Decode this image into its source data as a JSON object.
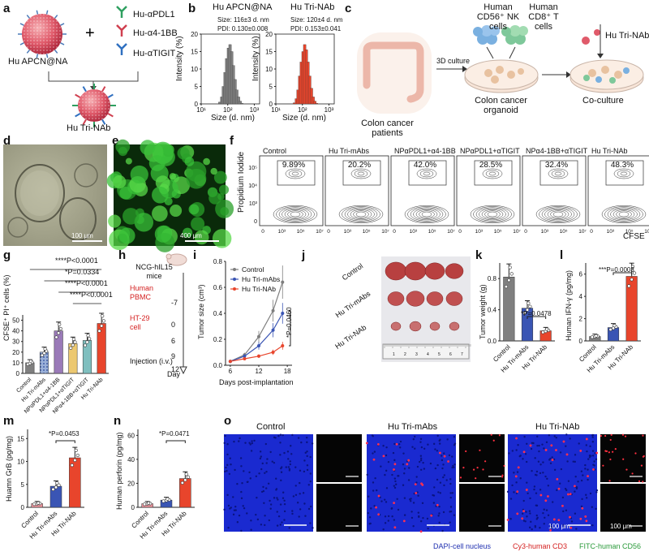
{
  "panel_letters": [
    "a",
    "b",
    "c",
    "d",
    "e",
    "f",
    "g",
    "h",
    "i",
    "j",
    "k",
    "l",
    "m",
    "n",
    "o"
  ],
  "panel_a": {
    "np_label": "Hu APCN@NA",
    "antibodies": [
      "Hu-αPDL1",
      "Hu-α4-1BB",
      "Hu-αTIGIT"
    ],
    "product_label": "Hu Tri-NAb"
  },
  "panel_b": {
    "left_title": "Hu APCN@NA",
    "left_size": "Size: 116±3 d. nm",
    "left_pdi": "PDI: 0.130±0.008",
    "right_title": "Hu Tri-NAb",
    "right_size": "Size: 120±4 d. nm",
    "right_pdi": "PDI: 0.153±0.041",
    "ylabel": "Intensity (%)",
    "xlabel": "Size (d. nm)",
    "yticks": [
      "0",
      "5",
      "10",
      "15",
      "20"
    ],
    "xticks": [
      "10¹",
      "10²",
      "10³"
    ]
  },
  "panel_c": {
    "nk_label": "Human CD56⁺ NK cells",
    "t_label": "Human CD8⁺ T cells",
    "culture_label": "3D culture",
    "patients_label": "Colon cancer patients",
    "organoid_label": "Colon cancer organoid",
    "treatment_label": "Hu Tri-NAb",
    "coculture_label": "Co-culture"
  },
  "panel_d": {
    "scale": "100 μm"
  },
  "panel_e": {
    "scale": "400 μm"
  },
  "panel_f": {
    "groups": [
      "Control",
      "Hu Tri-mAbs",
      "NPαPDL1+α4-1BB",
      "NPαPDL1+αTIGIT",
      "NPα4-1BB+αTIGIT",
      "Hu Tri-NAb"
    ],
    "percents": [
      "9.89%",
      "20.2%",
      "42.0%",
      "28.5%",
      "32.4%",
      "48.3%"
    ],
    "ylabel": "Propidium Iodide",
    "xlabel": "CFSE",
    "yticks": [
      "0",
      "10³",
      "10⁴",
      "10⁵"
    ],
    "xticks": [
      "0",
      "10³",
      "10⁵",
      "10⁷"
    ]
  },
  "panel_g": {
    "ylabel": "CFSE⁺ PI⁺ cells (%)",
    "yticks": [
      "0",
      "10",
      "20",
      "30",
      "40",
      "50"
    ],
    "stats": [
      "****P<0.0001",
      "*P=0.0334",
      "****P<0.0001",
      "****P<0.0001"
    ]
  },
  "panel_h": {
    "mouse_label": "NCG-hIL15 mice",
    "step1": "Human PBMC",
    "step2": "HT-29 cell",
    "step3": "Injection (i.v.)",
    "day_axis_label": "Day",
    "days": [
      "-7",
      "0",
      "6",
      "9",
      "12"
    ]
  },
  "panel_i": {
    "ylabel": "Tumor size (cm³)",
    "xlabel": "Days post-implantation",
    "stat": "*P=0.0460",
    "yticks": [
      "0.0",
      "0.2",
      "0.4",
      "0.6",
      "0.8"
    ],
    "xticks": [
      "6",
      "12",
      "18"
    ]
  },
  "panel_j": {
    "rows": [
      "Control",
      "Hu Tri-mAbs",
      "Hu Tri-NAb"
    ],
    "ruler_numbers": [
      "1",
      "2",
      "3",
      "4",
      "5",
      "6",
      "7"
    ]
  },
  "panel_k": {
    "ylabel": "Tumor weight (g)",
    "yticks": [
      "0.0",
      "0.4",
      "0.8"
    ],
    "stat": "*P=0.0478"
  },
  "panel_l": {
    "ylabel": "Human IFN-γ (pg/mg)",
    "yticks": [
      "0",
      "2",
      "4",
      "6"
    ],
    "stat": "***P=0.0003"
  },
  "panel_m": {
    "ylabel": "Huamn GrB (pg/mg)",
    "yticks": [
      "0",
      "5",
      "10",
      "15"
    ],
    "stat": "*P=0.0453"
  },
  "panel_n": {
    "ylabel": "Human perforin (pg/mg)",
    "yticks": [
      "0",
      "20",
      "40",
      "60"
    ],
    "stat": "*P=0.0471"
  },
  "panel_o": {
    "groups": [
      "Control",
      "Hu Tri-mAbs",
      "Hu Tri-NAb"
    ],
    "scale1": "100 μm",
    "scale2": "100 μm",
    "legend_dapi": "DAPI-cell nucleus",
    "legend_cy3": "Cy3-human CD3",
    "legend_fitc": "FITC-human CD56"
  },
  "colors": {
    "gray": "#7f7f7f",
    "blue": "#3a55b4",
    "red": "#e8452c",
    "pink": "#e8929a",
    "purple": "#9a7ab8",
    "yellow": "#ecc870",
    "teal": "#7fbfbf"
  },
  "chart_data": [
    {
      "id": "b-left",
      "type": "bar",
      "title": "Hu APCN@NA",
      "xlabel": "Size (d. nm)",
      "ylabel": "Intensity (%)",
      "x": [
        50,
        59,
        68,
        79,
        91,
        106,
        122,
        142,
        164,
        190,
        220,
        255,
        295,
        342
      ],
      "values": [
        0.5,
        2,
        5,
        9,
        13,
        16,
        17,
        15,
        11,
        7,
        4,
        2,
        0.8,
        0.2
      ],
      "ylim": [
        0,
        20
      ]
    },
    {
      "id": "b-right",
      "type": "bar",
      "title": "Hu Tri-NAb",
      "xlabel": "Size (d. nm)",
      "ylabel": "Intensity (%)",
      "x": [
        50,
        59,
        68,
        79,
        91,
        106,
        122,
        142,
        164,
        190,
        220,
        255,
        295,
        342
      ],
      "values": [
        0.3,
        1.5,
        4,
        8,
        12,
        15,
        17,
        15.5,
        12,
        8,
        4.5,
        2,
        0.8,
        0.2
      ],
      "ylim": [
        0,
        20
      ]
    },
    {
      "id": "g",
      "type": "bar",
      "ylabel": "CFSE⁺ PI⁺ cells (%)",
      "categories": [
        "Control",
        "Hu Tri-mAbs",
        "NPαPDL1+α4-1BB",
        "NPαPDL1+αTIGIT",
        "NPα4-1BB+αTIGIT",
        "Hu Tri-NAb"
      ],
      "values": [
        10,
        20,
        40,
        28,
        31,
        47
      ],
      "ylim": [
        0,
        55
      ]
    },
    {
      "id": "i",
      "type": "line",
      "xlabel": "Days post-implantation",
      "ylabel": "Tumor size (cm³)",
      "x": [
        6,
        9,
        12,
        15,
        17
      ],
      "series": [
        {
          "name": "Control",
          "values": [
            0.03,
            0.08,
            0.22,
            0.42,
            0.64
          ]
        },
        {
          "name": "Hu Tri-mAbs",
          "values": [
            0.03,
            0.07,
            0.15,
            0.27,
            0.4
          ]
        },
        {
          "name": "Hu Tri-NAb",
          "values": [
            0.03,
            0.05,
            0.07,
            0.1,
            0.15
          ]
        }
      ],
      "xlim": [
        5,
        19
      ],
      "ylim": [
        0,
        0.8
      ]
    },
    {
      "id": "k",
      "type": "bar",
      "ylabel": "Tumor weight (g)",
      "categories": [
        "Control",
        "Hu Tri-mAbs",
        "Hu Tri-NAb"
      ],
      "values": [
        0.82,
        0.42,
        0.13
      ],
      "ylim": [
        0,
        1.0
      ]
    },
    {
      "id": "l",
      "type": "bar",
      "ylabel": "Human IFN-γ (pg/mg)",
      "categories": [
        "Control",
        "Hu Tri-mAbs",
        "Hu Tri-NAb"
      ],
      "values": [
        0.4,
        1.2,
        5.8
      ],
      "ylim": [
        0,
        7
      ]
    },
    {
      "id": "m",
      "type": "bar",
      "ylabel": "Huamn GrB (pg/mg)",
      "categories": [
        "Control",
        "Hu Tri-mAbs",
        "Hu Tri-NAb"
      ],
      "values": [
        0.8,
        4.6,
        10.8
      ],
      "ylim": [
        0,
        17
      ]
    },
    {
      "id": "n",
      "type": "bar",
      "ylabel": "Human perforin (pg/mg)",
      "categories": [
        "Control",
        "Hu Tri-mAbs",
        "Hu Tri-NAb"
      ],
      "values": [
        3,
        6,
        24
      ],
      "ylim": [
        0,
        65
      ]
    }
  ]
}
